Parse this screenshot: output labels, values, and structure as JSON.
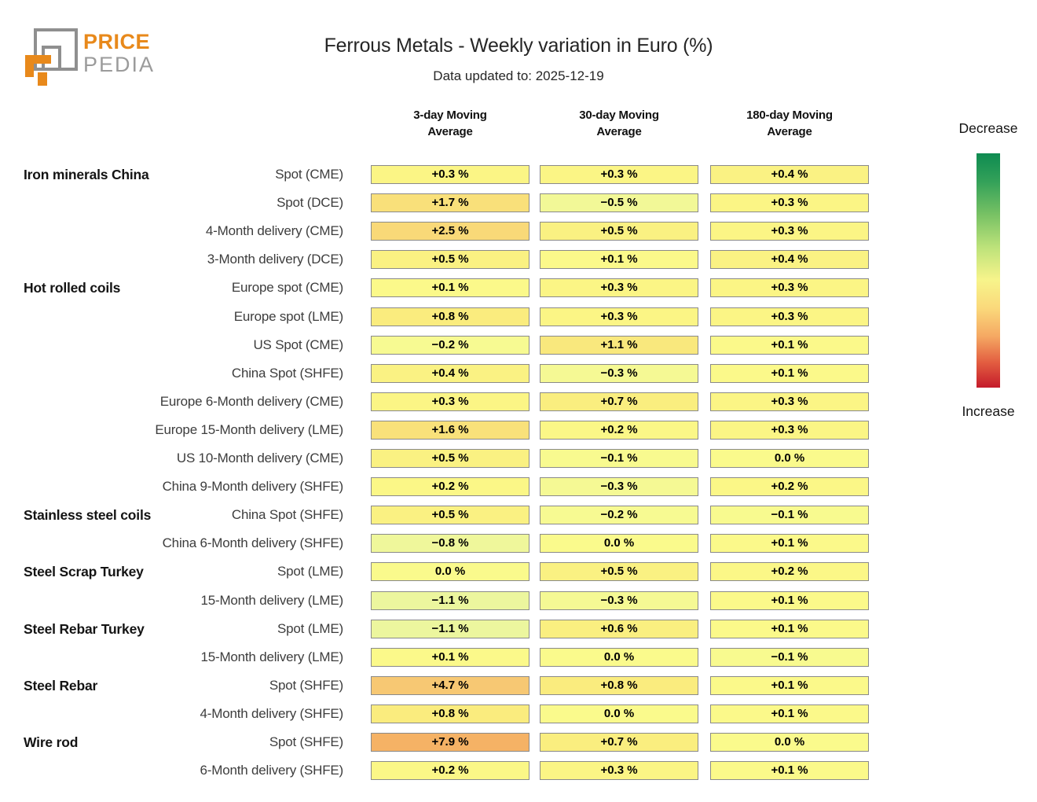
{
  "logo": {
    "brand_top": "PRICE",
    "brand_bottom": "PEDIA",
    "orange": "#E8891B",
    "gray": "#9B9B9B",
    "icon": "nested-squares-logo"
  },
  "header": {
    "title": "Ferrous Metals - Weekly variation in Euro (%)",
    "subtitle": "Data updated to: 2025-12-19"
  },
  "legend": {
    "top_label": "Decrease",
    "bottom_label": "Increase",
    "gradient_stops": [
      [
        "0%",
        "#0E8B51"
      ],
      [
        "12%",
        "#33A159"
      ],
      [
        "26%",
        "#77C164"
      ],
      [
        "40%",
        "#BCE27A"
      ],
      [
        "54%",
        "#F7F48B"
      ],
      [
        "66%",
        "#FAD97B"
      ],
      [
        "78%",
        "#F5A963"
      ],
      [
        "89%",
        "#E35F41"
      ],
      [
        "100%",
        "#C51B2B"
      ]
    ]
  },
  "chart_data": {
    "type": "heatmap",
    "title": "Ferrous Metals - Weekly variation in Euro (%)",
    "subtitle": "Data updated to: 2025-12-19",
    "unit": "percent weekly variation in Euro",
    "columns": [
      "3-day Moving\nAverage",
      "30-day Moving\nAverage",
      "180-day Moving\nAverage"
    ],
    "rows": [
      {
        "group": "Iron minerals China",
        "label": "Spot (CME)",
        "values": [
          0.3,
          0.3,
          0.4
        ],
        "texts": [
          "+0.3 %",
          "+0.3 %",
          "+0.4 %"
        ]
      },
      {
        "group": "",
        "label": "Spot (DCE)",
        "values": [
          1.7,
          -0.5,
          0.3
        ],
        "texts": [
          "+1.7 %",
          "−0.5 %",
          "+0.3 %"
        ]
      },
      {
        "group": "",
        "label": "4-Month delivery (CME)",
        "values": [
          2.5,
          0.5,
          0.3
        ],
        "texts": [
          "+2.5 %",
          "+0.5 %",
          "+0.3 %"
        ]
      },
      {
        "group": "",
        "label": "3-Month delivery (DCE)",
        "values": [
          0.5,
          0.1,
          0.4
        ],
        "texts": [
          "+0.5 %",
          "+0.1 %",
          "+0.4 %"
        ]
      },
      {
        "group": "Hot rolled coils",
        "label": "Europe spot (CME)",
        "values": [
          0.1,
          0.3,
          0.3
        ],
        "texts": [
          "+0.1 %",
          "+0.3 %",
          "+0.3 %"
        ]
      },
      {
        "group": "",
        "label": "Europe spot (LME)",
        "values": [
          0.8,
          0.3,
          0.3
        ],
        "texts": [
          "+0.8 %",
          "+0.3 %",
          "+0.3 %"
        ]
      },
      {
        "group": "",
        "label": "US Spot (CME)",
        "values": [
          -0.2,
          1.1,
          0.1
        ],
        "texts": [
          "−0.2 %",
          "+1.1 %",
          "+0.1 %"
        ]
      },
      {
        "group": "",
        "label": "China Spot (SHFE)",
        "values": [
          0.4,
          -0.3,
          0.1
        ],
        "texts": [
          "+0.4 %",
          "−0.3 %",
          "+0.1 %"
        ]
      },
      {
        "group": "",
        "label": "Europe 6-Month delivery (CME)",
        "values": [
          0.3,
          0.7,
          0.3
        ],
        "texts": [
          "+0.3 %",
          "+0.7 %",
          "+0.3 %"
        ]
      },
      {
        "group": "",
        "label": "Europe 15-Month delivery (LME)",
        "values": [
          1.6,
          0.2,
          0.3
        ],
        "texts": [
          "+1.6 %",
          "+0.2 %",
          "+0.3 %"
        ]
      },
      {
        "group": "",
        "label": "US 10-Month delivery (CME)",
        "values": [
          0.5,
          -0.1,
          0.0
        ],
        "texts": [
          "+0.5 %",
          "−0.1 %",
          "0.0 %"
        ]
      },
      {
        "group": "",
        "label": "China 9-Month delivery (SHFE)",
        "values": [
          0.2,
          -0.3,
          0.2
        ],
        "texts": [
          "+0.2 %",
          "−0.3 %",
          "+0.2 %"
        ]
      },
      {
        "group": "Stainless steel coils",
        "label": "China Spot (SHFE)",
        "values": [
          0.5,
          -0.2,
          -0.1
        ],
        "texts": [
          "+0.5 %",
          "−0.2 %",
          "−0.1 %"
        ]
      },
      {
        "group": "",
        "label": "China 6-Month delivery (SHFE)",
        "values": [
          -0.8,
          0.0,
          0.1
        ],
        "texts": [
          "−0.8 %",
          "0.0 %",
          "+0.1 %"
        ]
      },
      {
        "group": "Steel Scrap Turkey",
        "label": "Spot (LME)",
        "values": [
          0.0,
          0.5,
          0.2
        ],
        "texts": [
          "0.0 %",
          "+0.5 %",
          "+0.2 %"
        ]
      },
      {
        "group": "",
        "label": "15-Month delivery (LME)",
        "values": [
          -1.1,
          -0.3,
          0.1
        ],
        "texts": [
          "−1.1 %",
          "−0.3 %",
          "+0.1 %"
        ]
      },
      {
        "group": "Steel Rebar Turkey",
        "label": "Spot (LME)",
        "values": [
          -1.1,
          0.6,
          0.1
        ],
        "texts": [
          "−1.1 %",
          "+0.6 %",
          "+0.1 %"
        ]
      },
      {
        "group": "",
        "label": "15-Month delivery (LME)",
        "values": [
          0.1,
          0.0,
          -0.1
        ],
        "texts": [
          "+0.1 %",
          "0.0 %",
          "−0.1 %"
        ]
      },
      {
        "group": "Steel Rebar",
        "label": "Spot (SHFE)",
        "values": [
          4.7,
          0.8,
          0.1
        ],
        "texts": [
          "+4.7 %",
          "+0.8 %",
          "+0.1 %"
        ]
      },
      {
        "group": "",
        "label": "4-Month delivery (SHFE)",
        "values": [
          0.8,
          0.0,
          0.1
        ],
        "texts": [
          "+0.8 %",
          "0.0 %",
          "+0.1 %"
        ]
      },
      {
        "group": "Wire rod",
        "label": "Spot (SHFE)",
        "values": [
          7.9,
          0.7,
          0.0
        ],
        "texts": [
          "+7.9 %",
          "+0.7 %",
          "0.0 %"
        ]
      },
      {
        "group": "",
        "label": "6-Month delivery (SHFE)",
        "values": [
          0.2,
          0.3,
          0.1
        ],
        "texts": [
          "+0.2 %",
          "+0.3 %",
          "+0.1 %"
        ]
      }
    ],
    "colormap_anchors": [
      [
        -1.2,
        "#EBF69F"
      ],
      [
        -0.8,
        "#EFF79B"
      ],
      [
        -0.5,
        "#F2F897"
      ],
      [
        -0.3,
        "#F5F994"
      ],
      [
        -0.1,
        "#F8FA8F"
      ],
      [
        0.0,
        "#FAFA8C"
      ],
      [
        0.2,
        "#FBF787"
      ],
      [
        0.4,
        "#FAF283"
      ],
      [
        0.6,
        "#FAEF80"
      ],
      [
        0.8,
        "#FAEC7E"
      ],
      [
        1.2,
        "#F9E67C"
      ],
      [
        1.7,
        "#F9E07A"
      ],
      [
        2.5,
        "#F9D978"
      ],
      [
        4.7,
        "#F7C873"
      ],
      [
        8.0,
        "#F5B165"
      ]
    ],
    "legend": {
      "top": "Decrease",
      "bottom": "Increase"
    },
    "grid": false,
    "legend_position": "right"
  }
}
